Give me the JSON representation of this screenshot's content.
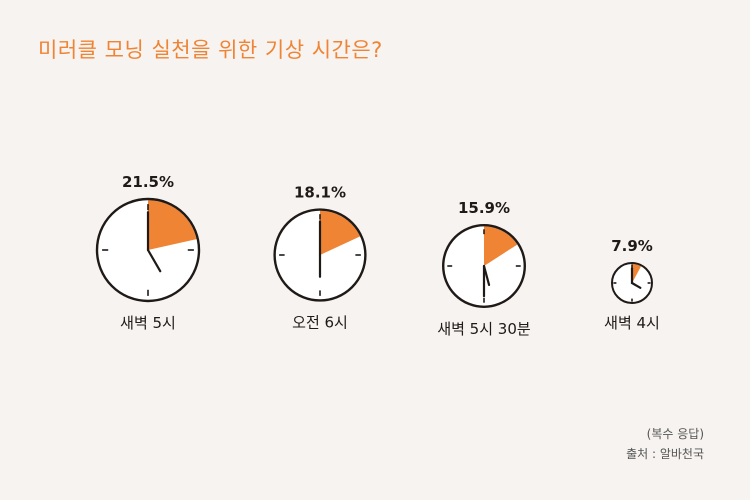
{
  "title": "미러클 모닝 실천을 위한 기상 시간은?",
  "note": "(복수 응답)",
  "source": "출처 : 알바천국",
  "colors": {
    "accent": "#ef8434",
    "clock_stroke": "#1f1a17",
    "clock_face": "#ffffff",
    "background": "#f7f3f0"
  },
  "chart_data": {
    "type": "pie",
    "unit": "%",
    "categories": [
      "새벽 5시",
      "오전 6시",
      "새벽 5시 30분",
      "새벽 4시"
    ],
    "values": [
      21.5,
      18.1,
      15.9,
      7.9
    ],
    "value_labels": [
      "21.5%",
      "18.1%",
      "15.9%",
      "7.9%"
    ],
    "clock_times": [
      "5:00",
      "6:00",
      "5:30",
      "4:00"
    ]
  }
}
